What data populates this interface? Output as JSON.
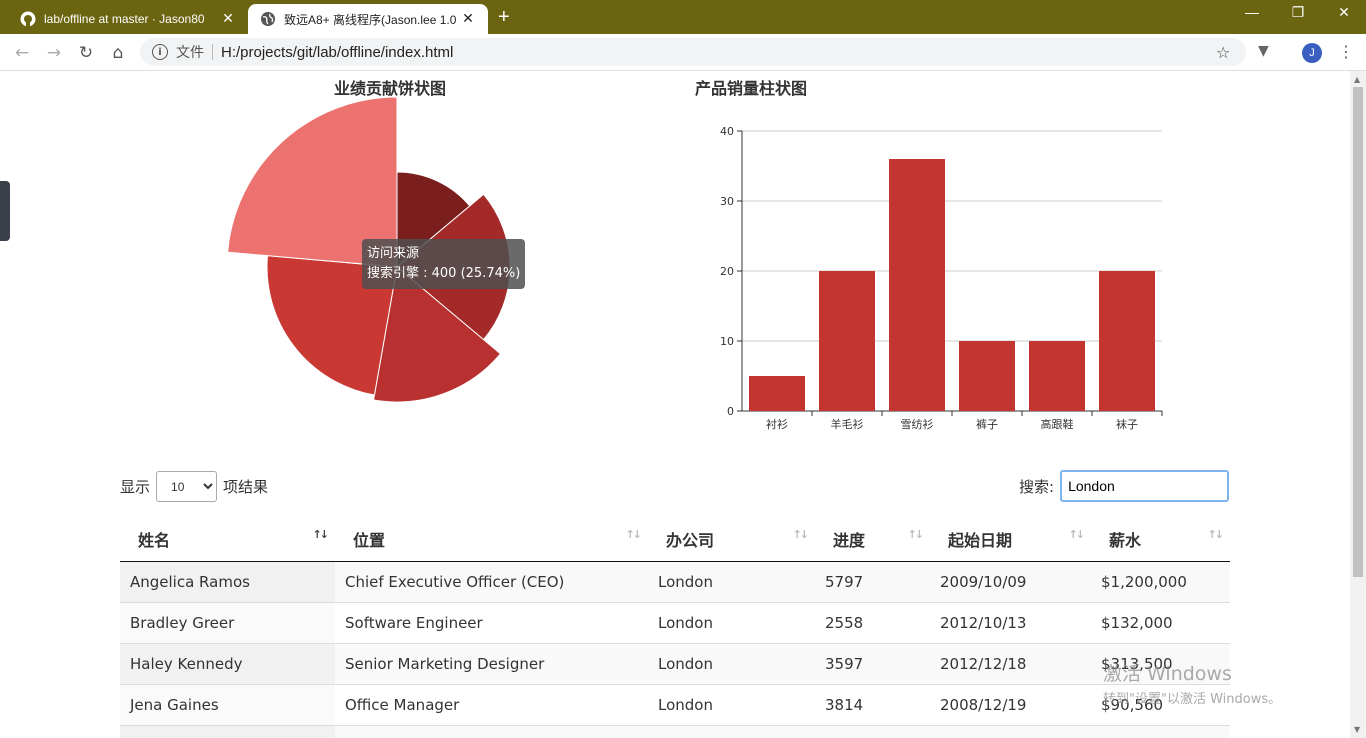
{
  "browser": {
    "tabs": [
      {
        "title": "lab/offline at master · Jason80",
        "icon": "github-icon"
      },
      {
        "title": "致远A8+ 离线程序(Jason.lee 1.0",
        "icon": "globe-icon"
      }
    ],
    "address_scheme_label": "文件",
    "address_url": "H:/projects/git/lab/offline/index.html",
    "avatar_letter": "J",
    "colors": {
      "titlebar": "#6b6512",
      "accent": "#3b5fc0"
    }
  },
  "pie_chart": {
    "title": "业绩贡献饼状图",
    "tooltip": {
      "title": "访问来源",
      "line": "搜索引擎 : 400 (25.74%)"
    }
  },
  "chart_data": {
    "type": "bar",
    "title": "产品销量柱状图",
    "categories": [
      "衬衫",
      "羊毛衫",
      "雪纺衫",
      "裤子",
      "高跟鞋",
      "袜子"
    ],
    "values": [
      5,
      20,
      36,
      10,
      10,
      20
    ],
    "ylim": [
      0,
      40
    ],
    "yticks": [
      0,
      10,
      20,
      30,
      40
    ],
    "grid": true,
    "color": "#c23531"
  },
  "pie_data": {
    "type": "pie",
    "rose": "radius",
    "colors": [
      "#7a1e1e",
      "#a42a2a",
      "#b8302f",
      "#c93832",
      "#ec7270"
    ]
  },
  "table_controls": {
    "length_prefix": "显示",
    "length_value": "10",
    "length_suffix": "项结果",
    "search_label": "搜索:",
    "search_value": "London"
  },
  "table": {
    "columns": [
      "姓名",
      "位置",
      "办公司",
      "进度",
      "起始日期",
      "薪水"
    ],
    "rows": [
      [
        "Angelica Ramos",
        "Chief Executive Officer (CEO)",
        "London",
        "5797",
        "2009/10/09",
        "$1,200,000"
      ],
      [
        "Bradley Greer",
        "Software Engineer",
        "London",
        "2558",
        "2012/10/13",
        "$132,000"
      ],
      [
        "Haley Kennedy",
        "Senior Marketing Designer",
        "London",
        "3597",
        "2012/12/18",
        "$313,500"
      ],
      [
        "Jena Gaines",
        "Office Manager",
        "London",
        "3814",
        "2008/12/19",
        "$90,560"
      ]
    ]
  },
  "watermark": {
    "line1": "激活 Windows",
    "line2": "转到\"设置\"以激活 Windows。"
  }
}
